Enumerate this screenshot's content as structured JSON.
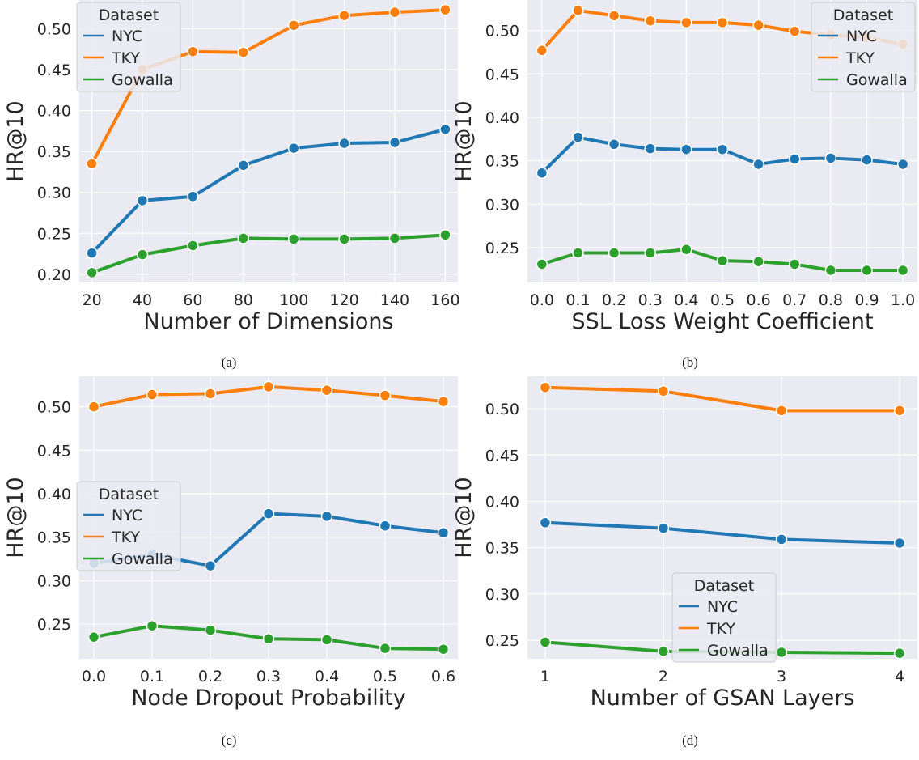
{
  "colors": {
    "nyc": "#1f77b4",
    "tky": "#ff7f0e",
    "gowalla": "#2ca02c",
    "panel_bg": "#eaeaf2",
    "grid": "#ffffff"
  },
  "chart_data": [
    {
      "type": "line",
      "caption": "(a)",
      "xlabel": "Number of Dimensions",
      "ylabel": "HR@10",
      "x": [
        20,
        40,
        60,
        80,
        100,
        120,
        140,
        160
      ],
      "xticks": [
        "20",
        "40",
        "60",
        "80",
        "100",
        "120",
        "140",
        "160"
      ],
      "xlim": [
        15,
        165
      ],
      "ylim": [
        0.19,
        0.535
      ],
      "yticks": [
        "0.20",
        "0.25",
        "0.30",
        "0.35",
        "0.40",
        "0.45",
        "0.50"
      ],
      "grid": true,
      "legend": {
        "title": "Dataset",
        "placement": "top-left",
        "entries": [
          "NYC",
          "TKY",
          "Gowalla"
        ]
      },
      "series": [
        {
          "name": "NYC",
          "values": [
            0.226,
            0.29,
            0.295,
            0.333,
            0.354,
            0.36,
            0.361,
            0.377
          ]
        },
        {
          "name": "TKY",
          "values": [
            0.335,
            0.45,
            0.472,
            0.471,
            0.504,
            0.516,
            0.52,
            0.523
          ]
        },
        {
          "name": "Gowalla",
          "values": [
            0.202,
            0.224,
            0.235,
            0.244,
            0.243,
            0.243,
            0.244,
            0.248
          ]
        }
      ]
    },
    {
      "type": "line",
      "caption": "(b)",
      "xlabel": "SSL Loss Weight Coefficient",
      "ylabel": "HR@10",
      "x": [
        0.0,
        0.1,
        0.2,
        0.3,
        0.4,
        0.5,
        0.6,
        0.7,
        0.8,
        0.9,
        1.0
      ],
      "xticks": [
        "0.0",
        "0.1",
        "0.2",
        "0.3",
        "0.4",
        "0.5",
        "0.6",
        "0.7",
        "0.8",
        "0.9",
        "1.0"
      ],
      "xlim": [
        -0.04,
        1.04
      ],
      "ylim": [
        0.21,
        0.535
      ],
      "yticks": [
        "0.25",
        "0.30",
        "0.35",
        "0.40",
        "0.45",
        "0.50"
      ],
      "grid": true,
      "legend": {
        "title": "Dataset",
        "placement": "top-right",
        "entries": [
          "NYC",
          "TKY",
          "Gowalla"
        ]
      },
      "series": [
        {
          "name": "NYC",
          "values": [
            0.336,
            0.377,
            0.369,
            0.364,
            0.363,
            0.363,
            0.346,
            0.352,
            0.353,
            0.351,
            0.346
          ]
        },
        {
          "name": "TKY",
          "values": [
            0.477,
            0.523,
            0.517,
            0.511,
            0.509,
            0.509,
            0.506,
            0.499,
            0.495,
            0.492,
            0.484
          ]
        },
        {
          "name": "Gowalla",
          "values": [
            0.231,
            0.244,
            0.244,
            0.244,
            0.248,
            0.235,
            0.234,
            0.231,
            0.224,
            0.224,
            0.224
          ]
        }
      ]
    },
    {
      "type": "line",
      "caption": "(c)",
      "xlabel": "Node Dropout Probability",
      "ylabel": "HR@10",
      "x": [
        0.0,
        0.1,
        0.2,
        0.3,
        0.4,
        0.5,
        0.6
      ],
      "xticks": [
        "0.0",
        "0.1",
        "0.2",
        "0.3",
        "0.4",
        "0.5",
        "0.6"
      ],
      "xlim": [
        -0.025,
        0.625
      ],
      "ylim": [
        0.21,
        0.535
      ],
      "yticks": [
        "0.25",
        "0.30",
        "0.35",
        "0.40",
        "0.45",
        "0.50"
      ],
      "grid": true,
      "legend": {
        "title": "Dataset",
        "placement": "center-left",
        "entries": [
          "NYC",
          "TKY",
          "Gowalla"
        ]
      },
      "series": [
        {
          "name": "NYC",
          "values": [
            0.32,
            0.33,
            0.317,
            0.377,
            0.374,
            0.363,
            0.355
          ]
        },
        {
          "name": "TKY",
          "values": [
            0.5,
            0.514,
            0.515,
            0.523,
            0.519,
            0.513,
            0.506
          ]
        },
        {
          "name": "Gowalla",
          "values": [
            0.235,
            0.248,
            0.243,
            0.233,
            0.232,
            0.222,
            0.221
          ]
        }
      ]
    },
    {
      "type": "line",
      "caption": "(d)",
      "xlabel": "Number of GSAN Layers",
      "ylabel": "HR@10",
      "x": [
        1,
        2,
        3,
        4
      ],
      "xticks": [
        "1",
        "2",
        "3",
        "4"
      ],
      "xlim": [
        0.85,
        4.15
      ],
      "ylim": [
        0.23,
        0.535
      ],
      "yticks": [
        "0.25",
        "0.30",
        "0.35",
        "0.40",
        "0.45",
        "0.50"
      ],
      "grid": true,
      "legend": {
        "title": "Dataset",
        "placement": "lower-center",
        "entries": [
          "NYC",
          "TKY",
          "Gowalla"
        ]
      },
      "series": [
        {
          "name": "NYC",
          "values": [
            0.377,
            0.371,
            0.359,
            0.355
          ]
        },
        {
          "name": "TKY",
          "values": [
            0.523,
            0.519,
            0.498,
            0.498
          ]
        },
        {
          "name": "Gowalla",
          "values": [
            0.248,
            0.238,
            0.237,
            0.236
          ]
        }
      ]
    }
  ]
}
